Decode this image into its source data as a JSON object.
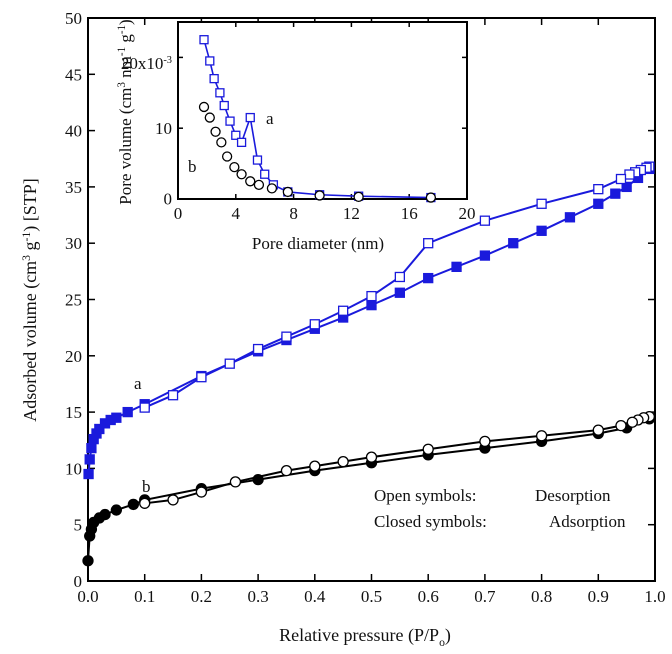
{
  "chart_data": [
    {
      "type": "scatter",
      "xlabel": [
        {
          "text": "Relative pressure (P/P"
        },
        {
          "text": "o",
          "script": "sub"
        },
        {
          "text": ")"
        }
      ],
      "ylabel": [
        {
          "text": "Adsorbed volume (cm"
        },
        {
          "text": "3",
          "script": "super"
        },
        {
          "text": " g"
        },
        {
          "text": "-1",
          "script": "super"
        },
        {
          "text": ") [STP]"
        }
      ],
      "xlim": [
        0,
        1
      ],
      "ylim": [
        0,
        50
      ],
      "xticks": [
        {
          "value": 0,
          "label": "0.0"
        },
        0.1,
        0.2,
        0.3,
        0.4,
        0.5,
        0.6,
        0.7,
        0.8,
        0.9,
        {
          "value": 1,
          "label": "1.0"
        }
      ],
      "yticks": [
        0,
        5,
        10,
        15,
        20,
        25,
        30,
        35,
        40,
        45,
        50
      ],
      "annotations": [
        "a",
        "b",
        "Open symbols:",
        "Desorption",
        "Closed symbols:",
        "Adsorption"
      ],
      "series": [
        {
          "color": "#1a1adc",
          "marker": "square",
          "filled": true,
          "line": true,
          "x": [
            0.001,
            0.003,
            0.006,
            0.01,
            0.015,
            0.02,
            0.03,
            0.04,
            0.05,
            0.07,
            0.1,
            0.2,
            0.3,
            0.35,
            0.4,
            0.45,
            0.5,
            0.55,
            0.6,
            0.65,
            0.7,
            0.75,
            0.8,
            0.85,
            0.9,
            0.93,
            0.95,
            0.97,
            0.99
          ],
          "values": [
            9.5,
            10.8,
            11.8,
            12.6,
            13.1,
            13.5,
            14.0,
            14.3,
            14.5,
            15.0,
            15.7,
            18.2,
            20.4,
            21.4,
            22.4,
            23.4,
            24.5,
            25.6,
            26.9,
            27.9,
            28.9,
            30.0,
            31.1,
            32.3,
            33.5,
            34.4,
            35.0,
            35.8,
            36.6
          ]
        },
        {
          "color": "#1a1adc",
          "marker": "square",
          "filled": false,
          "line": true,
          "x": [
            0.99,
            0.985,
            0.975,
            0.965,
            0.955,
            0.94,
            0.9,
            0.8,
            0.7,
            0.6,
            0.55,
            0.5,
            0.45,
            0.4,
            0.35,
            0.3,
            0.25,
            0.2,
            0.15,
            0.1
          ],
          "values": [
            36.8,
            36.7,
            36.5,
            36.3,
            36.1,
            35.7,
            34.8,
            33.5,
            32.0,
            30.0,
            27.0,
            25.3,
            24.0,
            22.8,
            21.7,
            20.6,
            19.3,
            18.1,
            16.5,
            15.4
          ]
        },
        {
          "color": "#000000",
          "marker": "circle",
          "filled": true,
          "line": true,
          "x": [
            0.0,
            0.003,
            0.006,
            0.01,
            0.02,
            0.03,
            0.05,
            0.08,
            0.1,
            0.2,
            0.3,
            0.4,
            0.5,
            0.6,
            0.7,
            0.8,
            0.9,
            0.95,
            0.99
          ],
          "values": [
            1.8,
            4.0,
            4.6,
            5.2,
            5.6,
            5.9,
            6.3,
            6.8,
            7.2,
            8.2,
            9.0,
            9.8,
            10.5,
            11.2,
            11.8,
            12.4,
            13.1,
            13.6,
            14.4
          ]
        },
        {
          "color": "#000000",
          "marker": "circle",
          "filled": false,
          "line": true,
          "x": [
            0.99,
            0.98,
            0.97,
            0.96,
            0.94,
            0.9,
            0.8,
            0.7,
            0.6,
            0.5,
            0.45,
            0.4,
            0.35,
            0.26,
            0.2,
            0.15,
            0.1
          ],
          "values": [
            14.6,
            14.5,
            14.3,
            14.1,
            13.8,
            13.4,
            12.9,
            12.4,
            11.7,
            11.0,
            10.6,
            10.2,
            9.8,
            8.8,
            7.9,
            7.2,
            6.9
          ]
        }
      ]
    },
    {
      "type": "scatter",
      "xlabel": [
        {
          "text": "Pore diameter (nm)"
        }
      ],
      "ylabel": [
        {
          "text": "Pore volume (cm"
        },
        {
          "text": "3",
          "script": "super"
        },
        {
          "text": " nm"
        },
        {
          "text": "-1",
          "script": "super"
        },
        {
          "text": " g"
        },
        {
          "text": "-1",
          "script": "super"
        },
        {
          "text": ")"
        }
      ],
      "xlim": [
        0,
        20
      ],
      "ylim": [
        0,
        25
      ],
      "xticks": [
        0,
        4,
        8,
        12,
        16,
        20
      ],
      "yticks": [
        0,
        10,
        {
          "value": 20,
          "label": "20x10"
        }
      ],
      "ytick_exponent": "-3",
      "annotations": [
        "a",
        "b"
      ],
      "series": [
        {
          "color": "#1a1adc",
          "marker": "square",
          "filled": false,
          "line": true,
          "x": [
            1.8,
            2.2,
            2.5,
            2.9,
            3.2,
            3.6,
            4.0,
            4.4,
            5.0,
            5.5,
            6.0,
            6.6,
            7.6,
            9.8,
            12.5,
            17.5
          ],
          "values": [
            22.5,
            19.5,
            17,
            15,
            13.2,
            11,
            9,
            8,
            11.5,
            5.5,
            3.5,
            2,
            1,
            0.6,
            0.4,
            0.2
          ]
        },
        {
          "color": "#000000",
          "marker": "circle",
          "filled": false,
          "line": false,
          "x": [
            1.8,
            2.2,
            2.6,
            3.0,
            3.4,
            3.9,
            4.4,
            5.0,
            5.6,
            6.5,
            7.6,
            9.8,
            12.5,
            17.5
          ],
          "values": [
            13,
            11.5,
            9.5,
            8,
            6,
            4.5,
            3.5,
            2.5,
            2,
            1.5,
            1,
            0.5,
            0.3,
            0.2
          ]
        }
      ]
    }
  ]
}
